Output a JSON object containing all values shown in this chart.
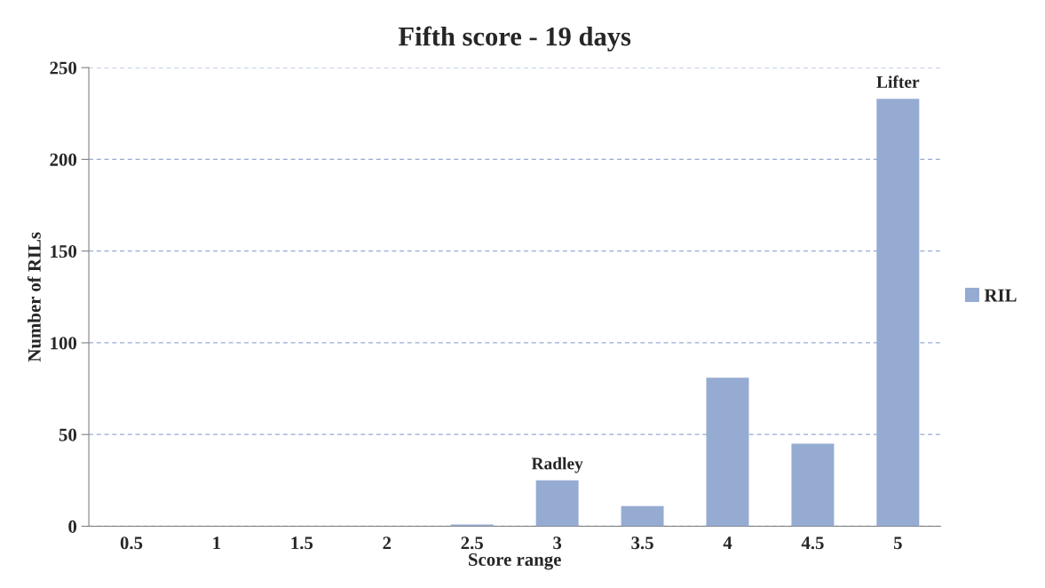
{
  "chart_data": {
    "type": "bar",
    "title": "Fifth score - 19 days",
    "xlabel": "Score range",
    "ylabel": "Number of RILs",
    "categories": [
      "0.5",
      "1",
      "1.5",
      "2",
      "2.5",
      "3",
      "3.5",
      "4",
      "4.5",
      "5"
    ],
    "series": [
      {
        "name": "RIL",
        "color": "#95abd2",
        "values": [
          0,
          0,
          0,
          0,
          1,
          25,
          11,
          81,
          45,
          233
        ]
      }
    ],
    "ylim": [
      0,
      250
    ],
    "yticks": [
      0,
      50,
      100,
      150,
      200,
      250
    ],
    "grid": "y",
    "legend": "right",
    "annotations": [
      {
        "text": "Radley",
        "x": "3",
        "y": 25
      },
      {
        "text": "Lifter",
        "x": "5",
        "y": 233
      }
    ]
  }
}
